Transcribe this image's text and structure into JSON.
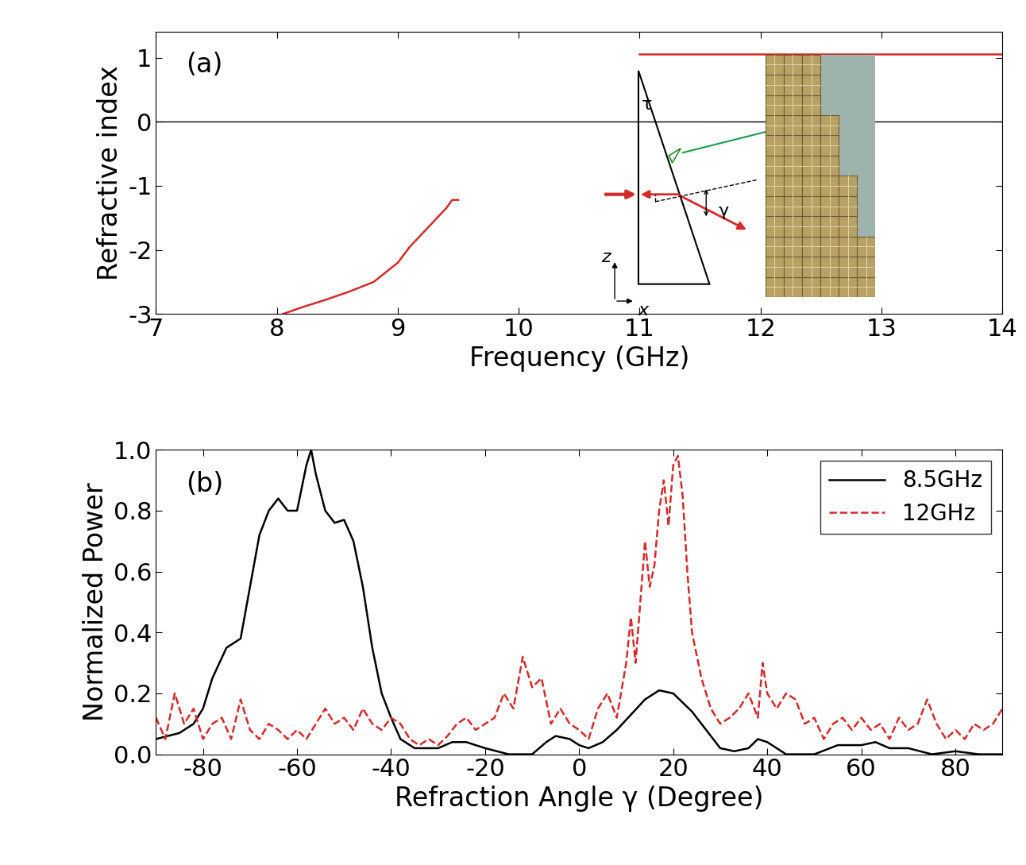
{
  "chart_data": [
    {
      "type": "line",
      "panel_label": "(a)",
      "x_label": "Frequency (GHz)",
      "y_label": "Refractive index",
      "xlim": [
        7,
        14
      ],
      "xticks": [
        7,
        8,
        9,
        10,
        11,
        12,
        13,
        14
      ],
      "ylim": [
        -3,
        1.4
      ],
      "yticks": [
        -3,
        -2,
        -1,
        0,
        1
      ],
      "inset_labels": {
        "angle_tau": "τ",
        "angle_gamma": "γ",
        "axis_z": "z",
        "axis_x": "x"
      },
      "series": [
        {
          "color": "#d42a2a",
          "line_style": "solid",
          "x": [
            8.05,
            8.2,
            8.4,
            8.6,
            8.8,
            9.0,
            9.1,
            9.2,
            9.3,
            9.4,
            9.45,
            9.5,
            10.2,
            11.0,
            14.0
          ],
          "values": [
            -3.0,
            -2.9,
            -2.78,
            -2.65,
            -2.5,
            -2.2,
            -1.95,
            -1.75,
            -1.55,
            -1.35,
            -1.22,
            -1.22,
            null,
            1.05,
            1.05
          ]
        }
      ]
    },
    {
      "type": "line",
      "panel_label": "(b)",
      "x_label": "Refraction Angle γ (Degree)",
      "y_label": "Normalized Power",
      "xlim": [
        -90,
        90
      ],
      "xticks": [
        -80,
        -60,
        -40,
        -20,
        0,
        20,
        40,
        60,
        80
      ],
      "ylim": [
        0,
        1.0
      ],
      "yticks": [
        {
          "value": 0,
          "label": "0.0"
        },
        {
          "value": 0.2,
          "label": "0.2"
        },
        {
          "value": 0.4,
          "label": "0.4"
        },
        {
          "value": 0.6,
          "label": "0.6"
        },
        {
          "value": 0.8,
          "label": "0.8"
        },
        {
          "value": 1.0,
          "label": "1.0"
        }
      ],
      "legend": "upper right",
      "series": [
        {
          "name": "8.5GHz",
          "color": "#000000",
          "line_style": "solid",
          "x": [
            -90,
            -85,
            -82,
            -80,
            -78,
            -75,
            -72,
            -70,
            -68,
            -66,
            -64,
            -62,
            -60,
            -58,
            -57,
            -56,
            -54,
            -52,
            -50,
            -48,
            -46,
            -44,
            -42,
            -40,
            -38,
            -35,
            -30,
            -27,
            -24,
            -20,
            -15,
            -10,
            -7,
            -5,
            -2,
            0,
            2,
            5,
            8,
            11,
            14,
            17,
            20,
            22,
            24,
            27,
            30,
            33,
            36,
            38,
            40,
            44,
            50,
            55,
            60,
            63,
            66,
            70,
            75,
            80,
            85,
            90
          ],
          "values": [
            0.05,
            0.07,
            0.1,
            0.15,
            0.25,
            0.35,
            0.38,
            0.55,
            0.72,
            0.8,
            0.84,
            0.8,
            0.8,
            0.95,
            1.0,
            0.92,
            0.8,
            0.76,
            0.77,
            0.7,
            0.55,
            0.35,
            0.2,
            0.12,
            0.05,
            0.02,
            0.02,
            0.04,
            0.04,
            0.02,
            0.0,
            0.0,
            0.04,
            0.06,
            0.05,
            0.03,
            0.02,
            0.04,
            0.08,
            0.13,
            0.18,
            0.21,
            0.2,
            0.17,
            0.14,
            0.08,
            0.02,
            0.01,
            0.02,
            0.05,
            0.04,
            0.0,
            0.0,
            0.03,
            0.03,
            0.04,
            0.02,
            0.02,
            0.0,
            0.01,
            0.0,
            0.0
          ]
        },
        {
          "name": "12GHz",
          "color": "#d42a2a",
          "line_style": "dashed",
          "x": [
            -90,
            -88,
            -86,
            -84,
            -82,
            -80,
            -78,
            -76,
            -74,
            -72,
            -70,
            -68,
            -66,
            -64,
            -62,
            -60,
            -58,
            -56,
            -54,
            -52,
            -50,
            -48,
            -46,
            -44,
            -42,
            -40,
            -38,
            -36,
            -34,
            -32,
            -30,
            -28,
            -26,
            -24,
            -22,
            -20,
            -18,
            -16,
            -14,
            -12,
            -10,
            -8,
            -6,
            -4,
            -2,
            0,
            2,
            4,
            6,
            8,
            10,
            11,
            12,
            13,
            14,
            15,
            16,
            17,
            18,
            19,
            20,
            21,
            22,
            23,
            24,
            26,
            28,
            30,
            32,
            34,
            36,
            38,
            39,
            40,
            42,
            44,
            46,
            48,
            50,
            52,
            54,
            56,
            58,
            60,
            62,
            64,
            66,
            68,
            70,
            72,
            74,
            76,
            78,
            80,
            82,
            84,
            86,
            88,
            90
          ],
          "values": [
            0.12,
            0.05,
            0.2,
            0.1,
            0.15,
            0.05,
            0.1,
            0.12,
            0.05,
            0.18,
            0.08,
            0.05,
            0.1,
            0.08,
            0.05,
            0.08,
            0.05,
            0.1,
            0.15,
            0.1,
            0.12,
            0.08,
            0.15,
            0.1,
            0.08,
            0.12,
            0.1,
            0.05,
            0.03,
            0.05,
            0.03,
            0.06,
            0.1,
            0.12,
            0.08,
            0.1,
            0.12,
            0.2,
            0.15,
            0.32,
            0.22,
            0.25,
            0.1,
            0.15,
            0.1,
            0.08,
            0.05,
            0.15,
            0.2,
            0.12,
            0.3,
            0.45,
            0.3,
            0.5,
            0.7,
            0.55,
            0.62,
            0.8,
            0.9,
            0.75,
            0.95,
            0.98,
            0.85,
            0.6,
            0.4,
            0.25,
            0.15,
            0.1,
            0.12,
            0.15,
            0.2,
            0.12,
            0.3,
            0.2,
            0.15,
            0.2,
            0.18,
            0.1,
            0.12,
            0.05,
            0.1,
            0.12,
            0.08,
            0.12,
            0.08,
            0.1,
            0.05,
            0.12,
            0.08,
            0.1,
            0.18,
            0.1,
            0.05,
            0.08,
            0.05,
            0.1,
            0.08,
            0.1,
            0.15
          ]
        }
      ]
    }
  ]
}
